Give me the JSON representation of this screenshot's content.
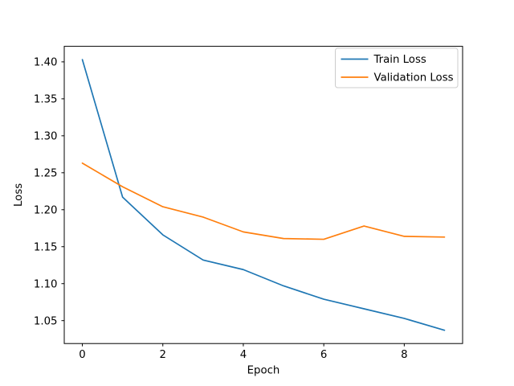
{
  "figure": {
    "background_color": "#ffffff"
  },
  "chart_data": {
    "type": "line",
    "title": "",
    "xlabel": "Epoch",
    "ylabel": "Loss",
    "x": [
      0,
      1,
      2,
      3,
      4,
      5,
      6,
      7,
      8,
      9
    ],
    "series": [
      {
        "name": "Train Loss",
        "color": "#1f77b4",
        "values": [
          1.403,
          1.217,
          1.166,
          1.132,
          1.119,
          1.097,
          1.079,
          1.066,
          1.053,
          1.037
        ]
      },
      {
        "name": "Validation Loss",
        "color": "#ff7f0e",
        "values": [
          1.263,
          1.231,
          1.204,
          1.19,
          1.17,
          1.161,
          1.16,
          1.178,
          1.164,
          1.163
        ]
      }
    ],
    "xlim": [
      -0.45,
      9.45
    ],
    "ylim": [
      1.019,
      1.421
    ],
    "xticks": [
      0,
      2,
      4,
      6,
      8
    ],
    "xtick_labels": [
      "0",
      "2",
      "4",
      "6",
      "8"
    ],
    "yticks": [
      1.05,
      1.1,
      1.15,
      1.2,
      1.25,
      1.3,
      1.35,
      1.4
    ],
    "ytick_labels": [
      "1.05",
      "1.10",
      "1.15",
      "1.20",
      "1.25",
      "1.30",
      "1.35",
      "1.40"
    ],
    "grid": false,
    "axis_color": "#000000",
    "text_color": "#000000",
    "legend": {
      "position": "upper right",
      "entries": [
        "Train Loss",
        "Validation Loss"
      ],
      "background_color": "#ffffff",
      "border_color": "#cccccc"
    }
  }
}
